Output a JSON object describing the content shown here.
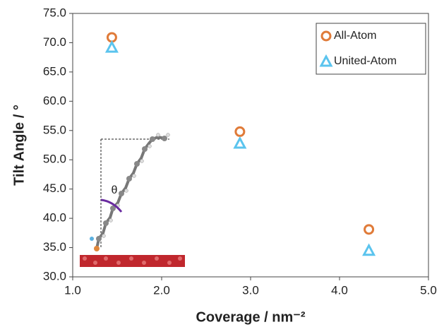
{
  "chart_data": {
    "type": "scatter",
    "xlabel": "Coverage / nm⁻²",
    "ylabel": "Tilt Angle / °",
    "annotations": [
      "θ"
    ],
    "xlim": [
      1,
      5
    ],
    "ylim": [
      30,
      75
    ],
    "xticks": [
      {
        "value": 1,
        "label": "1.0"
      },
      {
        "value": 2,
        "label": "2.0"
      },
      {
        "value": 3,
        "label": "3.0"
      },
      {
        "value": 4,
        "label": "4.0"
      },
      {
        "value": 5,
        "label": "5.0"
      }
    ],
    "yticks": [
      {
        "value": 30,
        "label": "30.0"
      },
      {
        "value": 35,
        "label": "35.0"
      },
      {
        "value": 40,
        "label": "40.0"
      },
      {
        "value": 45,
        "label": "45.0"
      },
      {
        "value": 50,
        "label": "50.0"
      },
      {
        "value": 55,
        "label": "55.0"
      },
      {
        "value": 60,
        "label": "60.0"
      },
      {
        "value": 65,
        "label": "65.0"
      },
      {
        "value": 70,
        "label": "70.0"
      },
      {
        "value": 75,
        "label": "75.0"
      }
    ],
    "legend": "upper right",
    "series": [
      {
        "name": "All-Atom",
        "color": "#e07b39",
        "marker": "circle",
        "x": [
          1.44,
          2.88,
          4.33
        ],
        "values": [
          70.9,
          54.8,
          38.1
        ]
      },
      {
        "name": "United-Atom",
        "color": "#5bc4ee",
        "marker": "triangle",
        "x": [
          1.44,
          2.88,
          4.33
        ],
        "values": [
          69.2,
          52.8,
          34.5
        ]
      }
    ]
  }
}
